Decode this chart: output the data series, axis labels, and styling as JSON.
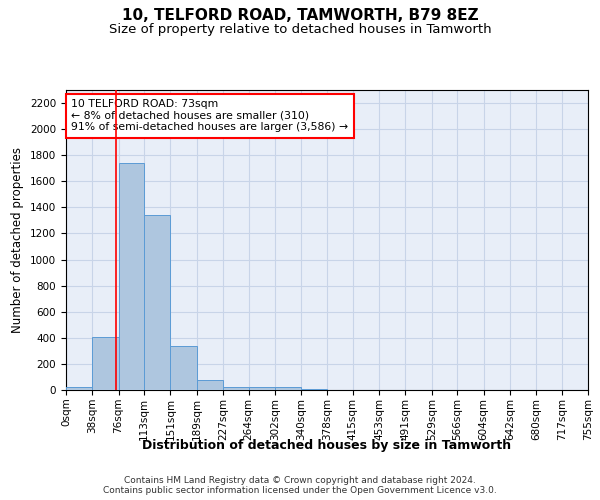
{
  "title1": "10, TELFORD ROAD, TAMWORTH, B79 8EZ",
  "title2": "Size of property relative to detached houses in Tamworth",
  "xlabel": "Distribution of detached houses by size in Tamworth",
  "ylabel": "Number of detached properties",
  "footnote1": "Contains HM Land Registry data © Crown copyright and database right 2024.",
  "footnote2": "Contains public sector information licensed under the Open Government Licence v3.0.",
  "bin_edges": [
    0,
    38,
    76,
    113,
    151,
    189,
    227,
    264,
    302,
    340,
    378,
    415,
    453,
    491,
    529,
    566,
    604,
    642,
    680,
    717,
    755
  ],
  "bar_heights": [
    20,
    410,
    1740,
    1340,
    340,
    80,
    25,
    20,
    20,
    5,
    0,
    0,
    0,
    0,
    0,
    0,
    0,
    0,
    0,
    0
  ],
  "bar_color": "#aec6df",
  "bar_edge_color": "#5b9bd5",
  "red_line_x": 73,
  "annotation_text": "10 TELFORD ROAD: 73sqm\n← 8% of detached houses are smaller (310)\n91% of semi-detached houses are larger (3,586) →",
  "annotation_box_color": "white",
  "annotation_box_edge": "red",
  "ylim": [
    0,
    2300
  ],
  "yticks": [
    0,
    200,
    400,
    600,
    800,
    1000,
    1200,
    1400,
    1600,
    1800,
    2000,
    2200
  ],
  "grid_color": "#c8d4e8",
  "background_color": "#e8eef8",
  "title1_fontsize": 11,
  "title2_fontsize": 9.5,
  "xlabel_fontsize": 9,
  "ylabel_fontsize": 8.5,
  "tick_fontsize": 7.5,
  "footnote_fontsize": 6.5
}
